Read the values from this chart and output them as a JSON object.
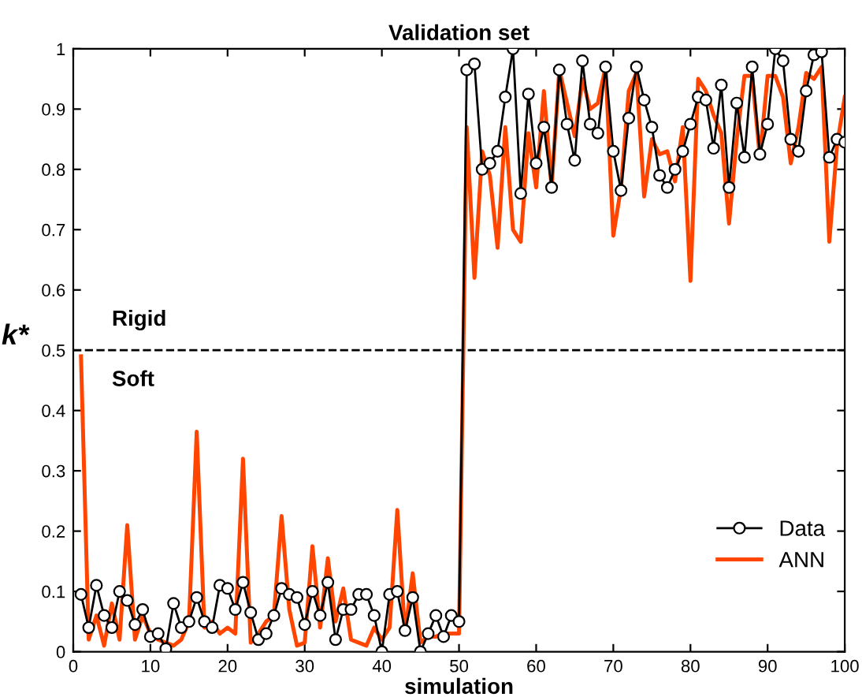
{
  "chart_data": {
    "type": "line",
    "title": "Validation set",
    "xlabel": "simulation",
    "ylabel": "k*",
    "x": [
      1,
      2,
      3,
      4,
      5,
      6,
      7,
      8,
      9,
      10,
      11,
      12,
      13,
      14,
      15,
      16,
      17,
      18,
      19,
      20,
      21,
      22,
      23,
      24,
      25,
      26,
      27,
      28,
      29,
      30,
      31,
      32,
      33,
      34,
      35,
      36,
      37,
      38,
      39,
      40,
      41,
      42,
      43,
      44,
      45,
      46,
      47,
      48,
      49,
      50,
      51,
      52,
      53,
      54,
      55,
      56,
      57,
      58,
      59,
      60,
      61,
      62,
      63,
      64,
      65,
      66,
      67,
      68,
      69,
      70,
      71,
      72,
      73,
      74,
      75,
      76,
      77,
      78,
      79,
      80,
      81,
      82,
      83,
      84,
      85,
      86,
      87,
      88,
      89,
      90,
      91,
      92,
      93,
      94,
      95,
      96,
      97,
      98,
      99,
      100
    ],
    "series": [
      {
        "name": "Data",
        "color": "#000000",
        "marker": "circle",
        "values": [
          0.095,
          0.04,
          0.11,
          0.06,
          0.04,
          0.1,
          0.085,
          0.045,
          0.07,
          0.025,
          0.03,
          0.005,
          0.08,
          0.04,
          0.05,
          0.09,
          0.05,
          0.04,
          0.11,
          0.105,
          0.07,
          0.115,
          0.065,
          0.02,
          0.03,
          0.06,
          0.105,
          0.095,
          0.09,
          0.045,
          0.1,
          0.06,
          0.115,
          0.02,
          0.07,
          0.07,
          0.095,
          0.095,
          0.06,
          0.0,
          0.095,
          0.1,
          0.035,
          0.09,
          0.0,
          0.03,
          0.06,
          0.025,
          0.06,
          0.05,
          0.965,
          0.975,
          0.8,
          0.81,
          0.83,
          0.92,
          1.0,
          0.76,
          0.925,
          0.81,
          0.87,
          0.77,
          0.965,
          0.875,
          0.815,
          0.98,
          0.875,
          0.86,
          0.97,
          0.83,
          0.765,
          0.885,
          0.97,
          0.915,
          0.87,
          0.79,
          0.77,
          0.8,
          0.83,
          0.875,
          0.92,
          0.915,
          0.835,
          0.94,
          0.77,
          0.91,
          0.82,
          0.97,
          0.825,
          0.875,
          1.0,
          0.98,
          0.85,
          0.83,
          0.93,
          0.99,
          0.995,
          0.82,
          0.85,
          0.845
        ]
      },
      {
        "name": "ANN",
        "color": "#ff4500",
        "values": [
          0.49,
          0.02,
          0.06,
          0.01,
          0.08,
          0.02,
          0.21,
          0.02,
          0.06,
          0.03,
          0.02,
          0.015,
          0.01,
          0.02,
          0.05,
          0.365,
          0.04,
          0.05,
          0.03,
          0.04,
          0.03,
          0.32,
          0.015,
          0.03,
          0.05,
          0.06,
          0.225,
          0.07,
          0.01,
          0.015,
          0.175,
          0.04,
          0.155,
          0.05,
          0.105,
          0.02,
          0.015,
          0.01,
          0.04,
          0.02,
          0.04,
          0.235,
          0.03,
          0.13,
          0.015,
          0.025,
          0.025,
          0.03,
          0.03,
          0.03,
          0.87,
          0.62,
          0.83,
          0.79,
          0.67,
          0.87,
          0.7,
          0.68,
          0.86,
          0.77,
          0.93,
          0.77,
          0.965,
          0.91,
          0.855,
          0.95,
          0.9,
          0.91,
          0.97,
          0.69,
          0.77,
          0.93,
          0.96,
          0.755,
          0.85,
          0.825,
          0.83,
          0.78,
          0.87,
          0.615,
          0.95,
          0.93,
          0.89,
          0.86,
          0.71,
          0.85,
          0.955,
          0.955,
          0.82,
          0.955,
          0.955,
          0.92,
          0.81,
          0.87,
          0.96,
          0.95,
          0.97,
          0.68,
          0.84,
          0.92
        ]
      }
    ],
    "xlim": [
      0,
      100
    ],
    "ylim": [
      0,
      1
    ],
    "xticks": [
      0,
      10,
      20,
      30,
      40,
      50,
      60,
      70,
      80,
      90,
      100
    ],
    "yticks": [
      0,
      0.1,
      0.2,
      0.3,
      0.4,
      0.5,
      0.6,
      0.7,
      0.8,
      0.9,
      1
    ],
    "ref_lines": [
      {
        "axis": "y",
        "value": 0.5,
        "color": "#000000",
        "line_style": "dashed"
      }
    ],
    "annotations": [
      "Rigid",
      "Soft"
    ],
    "legend": "bottom right",
    "grid": false
  }
}
